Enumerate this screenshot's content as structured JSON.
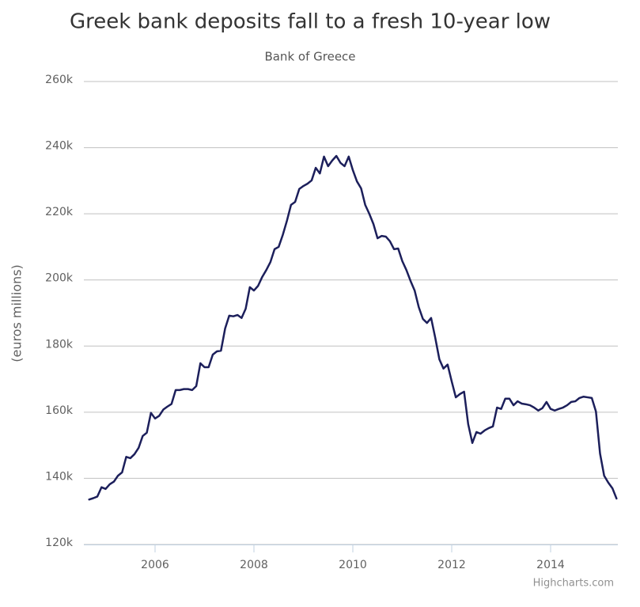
{
  "chart_data": {
    "type": "line",
    "title": "Greek bank deposits fall to a fresh 10-year low",
    "subtitle": "Bank of Greece",
    "y_label": "(euros millions)",
    "credits": "Highcharts.com",
    "color": "#1c1f5b",
    "grid": true,
    "xlim": [
      2004.56,
      2015.36
    ],
    "xticks": [
      2006,
      2008,
      2010,
      2012,
      2014
    ],
    "ylim": [
      120000,
      260000
    ],
    "yticks": [
      {
        "value": 120000,
        "label": "120k"
      },
      {
        "value": 140000,
        "label": "140k"
      },
      {
        "value": 160000,
        "label": "160k"
      },
      {
        "value": 180000,
        "label": "180k"
      },
      {
        "value": 200000,
        "label": "200k"
      },
      {
        "value": 220000,
        "label": "220k"
      },
      {
        "value": 240000,
        "label": "240k"
      },
      {
        "value": 260000,
        "label": "260k"
      }
    ],
    "x": [
      2004.667,
      2004.75,
      2004.833,
      2004.917,
      2005.0,
      2005.083,
      2005.167,
      2005.25,
      2005.333,
      2005.417,
      2005.5,
      2005.583,
      2005.667,
      2005.75,
      2005.833,
      2005.917,
      2006.0,
      2006.083,
      2006.167,
      2006.25,
      2006.333,
      2006.417,
      2006.5,
      2006.583,
      2006.667,
      2006.75,
      2006.833,
      2006.917,
      2007.0,
      2007.083,
      2007.167,
      2007.25,
      2007.333,
      2007.417,
      2007.5,
      2007.583,
      2007.667,
      2007.75,
      2007.833,
      2007.917,
      2008.0,
      2008.083,
      2008.167,
      2008.25,
      2008.333,
      2008.417,
      2008.5,
      2008.583,
      2008.667,
      2008.75,
      2008.833,
      2008.917,
      2009.0,
      2009.083,
      2009.167,
      2009.25,
      2009.333,
      2009.417,
      2009.5,
      2009.583,
      2009.667,
      2009.75,
      2009.833,
      2009.917,
      2010.0,
      2010.083,
      2010.167,
      2010.25,
      2010.333,
      2010.417,
      2010.5,
      2010.583,
      2010.667,
      2010.75,
      2010.833,
      2010.917,
      2011.0,
      2011.083,
      2011.167,
      2011.25,
      2011.333,
      2011.417,
      2011.5,
      2011.583,
      2011.667,
      2011.75,
      2011.833,
      2011.917,
      2012.0,
      2012.083,
      2012.167,
      2012.25,
      2012.333,
      2012.417,
      2012.5,
      2012.583,
      2012.667,
      2012.75,
      2012.833,
      2012.917,
      2013.0,
      2013.083,
      2013.167,
      2013.25,
      2013.333,
      2013.417,
      2013.5,
      2013.583,
      2013.667,
      2013.75,
      2013.833,
      2013.917,
      2014.0,
      2014.083,
      2014.167,
      2014.25,
      2014.333,
      2014.417,
      2014.5,
      2014.583,
      2014.667,
      2014.75,
      2014.833,
      2014.917,
      2015.0,
      2015.083,
      2015.167,
      2015.25,
      2015.333
    ],
    "values": [
      133600,
      134000,
      134500,
      137300,
      136800,
      138200,
      139000,
      140800,
      141800,
      146500,
      146100,
      147300,
      149200,
      152800,
      153800,
      159800,
      158100,
      158900,
      160800,
      161700,
      162500,
      166700,
      166700,
      167000,
      167000,
      166700,
      167900,
      174800,
      173600,
      173600,
      177400,
      178400,
      178600,
      185300,
      189200,
      189000,
      189400,
      188500,
      191300,
      197800,
      196800,
      198200,
      200900,
      203000,
      205400,
      209300,
      210000,
      213600,
      217900,
      222700,
      223600,
      227500,
      228400,
      229100,
      230100,
      233900,
      232200,
      237300,
      234400,
      236100,
      237500,
      235400,
      234400,
      237300,
      233200,
      229800,
      227700,
      222700,
      220000,
      216900,
      212600,
      213300,
      213100,
      211700,
      209300,
      209500,
      205700,
      203000,
      199700,
      196800,
      191800,
      188200,
      187000,
      188500,
      182500,
      176000,
      173200,
      174400,
      169300,
      164500,
      165500,
      166200,
      156400,
      150700,
      154000,
      153500,
      154500,
      155200,
      155700,
      161400,
      161000,
      164100,
      164100,
      162100,
      163300,
      162600,
      162400,
      162100,
      161400,
      160500,
      161200,
      163100,
      161000,
      160500,
      161000,
      161400,
      162100,
      163100,
      163300,
      164300,
      164700,
      164500,
      164300,
      160200,
      147500,
      140800,
      138700,
      137000,
      133900
    ]
  }
}
